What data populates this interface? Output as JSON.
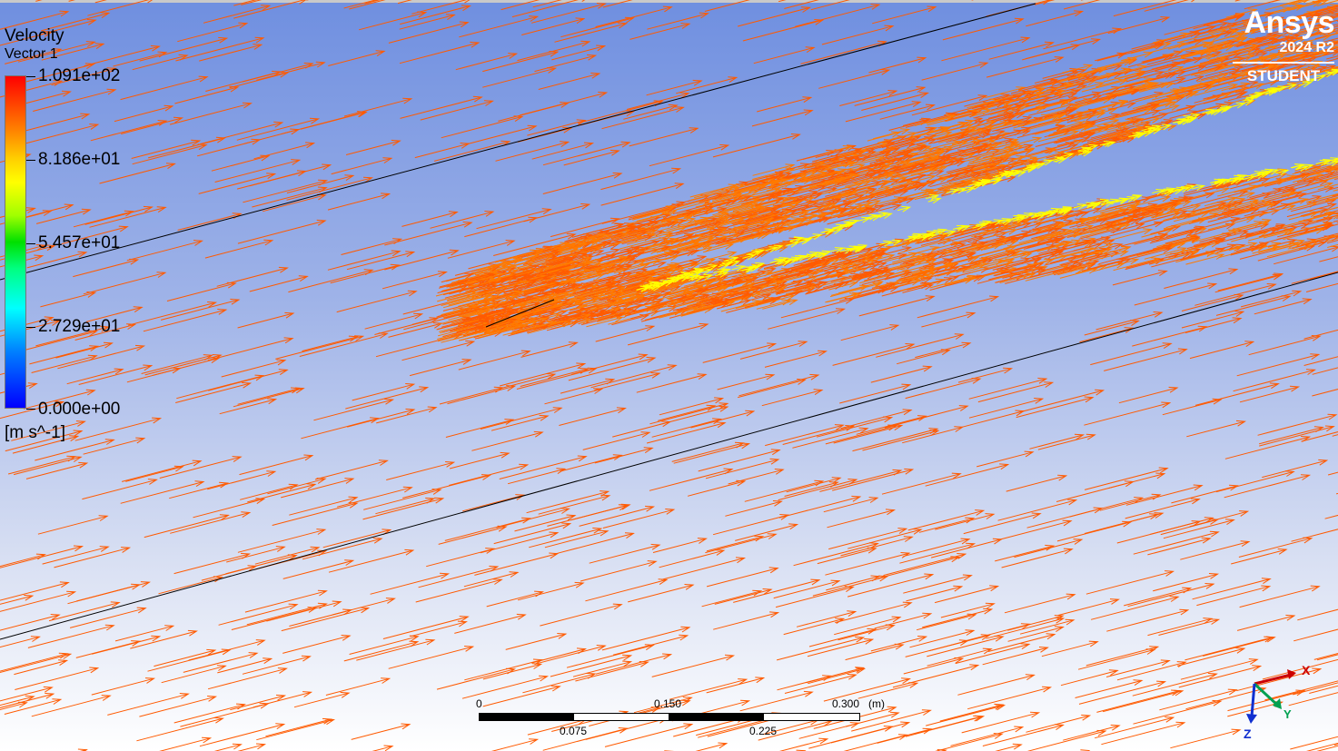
{
  "legend": {
    "title": "Velocity",
    "subtitle": "Vector 1",
    "ticks": [
      "1.091e+02",
      "8.186e+01",
      "5.457e+01",
      "2.729e+01",
      "0.000e+00"
    ],
    "units": "[m s^-1]"
  },
  "logo": {
    "name": "Ansys",
    "version": "2024 R2",
    "edition": "STUDENT"
  },
  "scale_bar": {
    "top_labels": [
      "0",
      "0.150",
      "0.300"
    ],
    "unit": "(m)",
    "bottom_labels": [
      "0.075",
      "0.225"
    ]
  },
  "axes": {
    "x": "X",
    "z": "Z",
    "y": "Y"
  },
  "colors": {
    "arrow": "#ff5a00",
    "arrow_hot": "#ff7a00",
    "edge": "#ffff00",
    "x_axis": "#cc0000",
    "y_axis": "#00a050",
    "z_axis": "#1030d0"
  }
}
